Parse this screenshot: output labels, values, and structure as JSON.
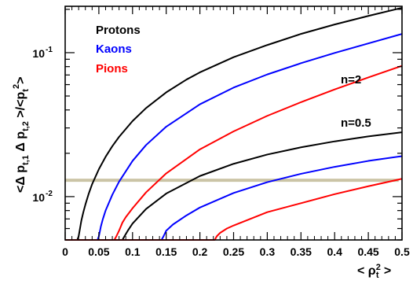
{
  "chart_data": {
    "type": "line",
    "xlabel": "< ρt2 >",
    "ylabel": "<Δ pt,1  Δ pt,2 >/<pt>2",
    "x_axis": {
      "range": [
        0,
        0.5
      ],
      "ticks": [
        0,
        0.05,
        0.1,
        0.15,
        0.2,
        0.25,
        0.3,
        0.35,
        0.4,
        0.45,
        0.5
      ],
      "tick_labels": [
        "0",
        "0.05",
        "0.1",
        "0.15",
        "0.2",
        "0.25",
        "0.3",
        "0.35",
        "0.4",
        "0.45",
        "0.5"
      ]
    },
    "y_axis": {
      "scale": "log",
      "range": [
        0.005,
        0.21
      ],
      "labeled_ticks": [
        {
          "value": 0.01,
          "base": "10",
          "exp": "-2"
        },
        {
          "value": 0.1,
          "base": "10",
          "exp": "-1"
        }
      ]
    },
    "legend": {
      "placement": "top-left",
      "entries": [
        {
          "label": "Protons",
          "color": "#000000"
        },
        {
          "label": "Kaons",
          "color": "#0000ff"
        },
        {
          "label": "Pions",
          "color": "#ff0000"
        }
      ]
    },
    "annotations": [
      {
        "text": "n=2",
        "x": 0.41,
        "y": 0.058
      },
      {
        "text": "n=0.5",
        "x": 0.41,
        "y": 0.026
      }
    ],
    "reference_line": {
      "y": 0.013,
      "x_range": [
        0.0,
        0.495
      ],
      "color": "#cbc4a6"
    },
    "series": [
      {
        "label": "Protons",
        "group": "n=2",
        "color": "#000000",
        "points": [
          [
            0.0,
            0.005
          ],
          [
            0.018,
            0.005
          ],
          [
            0.02,
            0.0053
          ],
          [
            0.022,
            0.006
          ],
          [
            0.024,
            0.0068
          ],
          [
            0.027,
            0.0078
          ],
          [
            0.03,
            0.0088
          ],
          [
            0.035,
            0.0105
          ],
          [
            0.04,
            0.0122
          ],
          [
            0.05,
            0.0155
          ],
          [
            0.06,
            0.0189
          ],
          [
            0.07,
            0.0224
          ],
          [
            0.08,
            0.026
          ],
          [
            0.1,
            0.0335
          ],
          [
            0.12,
            0.0412
          ],
          [
            0.15,
            0.053
          ],
          [
            0.18,
            0.065
          ],
          [
            0.2,
            0.073
          ],
          [
            0.25,
            0.093
          ],
          [
            0.3,
            0.113
          ],
          [
            0.35,
            0.135
          ],
          [
            0.4,
            0.157
          ],
          [
            0.45,
            0.18
          ],
          [
            0.5,
            0.205
          ]
        ]
      },
      {
        "label": "Kaons",
        "group": "n=2",
        "color": "#0000ff",
        "points": [
          [
            0.0,
            0.005
          ],
          [
            0.048,
            0.005
          ],
          [
            0.05,
            0.0053
          ],
          [
            0.053,
            0.0062
          ],
          [
            0.056,
            0.007
          ],
          [
            0.06,
            0.008
          ],
          [
            0.07,
            0.0103
          ],
          [
            0.08,
            0.0127
          ],
          [
            0.1,
            0.0177
          ],
          [
            0.12,
            0.0228
          ],
          [
            0.15,
            0.0306
          ],
          [
            0.2,
            0.0438
          ],
          [
            0.25,
            0.0572
          ],
          [
            0.3,
            0.0706
          ],
          [
            0.35,
            0.0845
          ],
          [
            0.4,
            0.0995
          ],
          [
            0.45,
            0.116
          ],
          [
            0.5,
            0.135
          ]
        ]
      },
      {
        "label": "Pions",
        "group": "n=2",
        "color": "#ff0000",
        "points": [
          [
            0.0,
            0.005
          ],
          [
            0.073,
            0.005
          ],
          [
            0.076,
            0.0053
          ],
          [
            0.08,
            0.0058
          ],
          [
            0.085,
            0.0066
          ],
          [
            0.09,
            0.0072
          ],
          [
            0.1,
            0.0083
          ],
          [
            0.12,
            0.0107
          ],
          [
            0.15,
            0.0145
          ],
          [
            0.2,
            0.0213
          ],
          [
            0.25,
            0.0284
          ],
          [
            0.3,
            0.0364
          ],
          [
            0.35,
            0.0453
          ],
          [
            0.4,
            0.0555
          ],
          [
            0.45,
            0.0673
          ],
          [
            0.5,
            0.081
          ]
        ]
      },
      {
        "label": "Protons",
        "group": "n=0.5",
        "color": "#000000",
        "points": [
          [
            0.0,
            0.005
          ],
          [
            0.085,
            0.005
          ],
          [
            0.088,
            0.0053
          ],
          [
            0.093,
            0.0058
          ],
          [
            0.1,
            0.0065
          ],
          [
            0.12,
            0.0082
          ],
          [
            0.15,
            0.0105
          ],
          [
            0.2,
            0.0139
          ],
          [
            0.25,
            0.0169
          ],
          [
            0.3,
            0.0196
          ],
          [
            0.35,
            0.022
          ],
          [
            0.4,
            0.0242
          ],
          [
            0.45,
            0.0262
          ],
          [
            0.5,
            0.028
          ]
        ]
      },
      {
        "label": "Kaons",
        "group": "n=0.5",
        "color": "#0000ff",
        "points": [
          [
            0.0,
            0.005
          ],
          [
            0.143,
            0.005
          ],
          [
            0.146,
            0.0053
          ],
          [
            0.15,
            0.0058
          ],
          [
            0.16,
            0.0064
          ],
          [
            0.18,
            0.0074
          ],
          [
            0.2,
            0.0084
          ],
          [
            0.25,
            0.0106
          ],
          [
            0.3,
            0.0126
          ],
          [
            0.35,
            0.0144
          ],
          [
            0.4,
            0.0161
          ],
          [
            0.45,
            0.0177
          ],
          [
            0.5,
            0.0191
          ]
        ]
      },
      {
        "label": "Pions",
        "group": "n=0.5",
        "color": "#ff0000",
        "points": [
          [
            0.0,
            0.005
          ],
          [
            0.222,
            0.005
          ],
          [
            0.225,
            0.0053
          ],
          [
            0.23,
            0.0056
          ],
          [
            0.24,
            0.006
          ],
          [
            0.25,
            0.0063
          ],
          [
            0.3,
            0.0078
          ],
          [
            0.35,
            0.009
          ],
          [
            0.4,
            0.0104
          ],
          [
            0.45,
            0.0118
          ],
          [
            0.5,
            0.0133
          ]
        ]
      }
    ]
  }
}
